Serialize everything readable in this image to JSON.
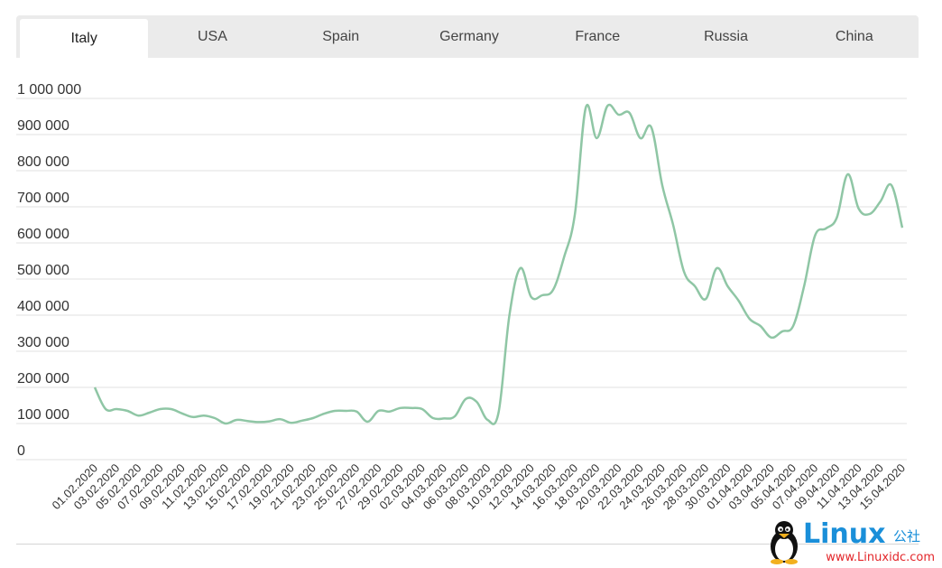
{
  "tabs": [
    {
      "label": "Italy",
      "active": true
    },
    {
      "label": "USA",
      "active": false
    },
    {
      "label": "Spain",
      "active": false
    },
    {
      "label": "Germany",
      "active": false
    },
    {
      "label": "France",
      "active": false
    },
    {
      "label": "Russia",
      "active": false
    },
    {
      "label": "China",
      "active": false
    }
  ],
  "watermark": {
    "brand": "Linux",
    "suffix": "公社",
    "url": "www.Linuxidc.com"
  },
  "chart_data": {
    "type": "line",
    "title": "",
    "xlabel": "",
    "ylabel": "",
    "ylim": [
      0,
      1000000
    ],
    "grid": true,
    "line_color": "#8fc6a5",
    "yticks": [
      {
        "value": 0,
        "label": "0"
      },
      {
        "value": 100000,
        "label": "100 000"
      },
      {
        "value": 200000,
        "label": "200 000"
      },
      {
        "value": 300000,
        "label": "300 000"
      },
      {
        "value": 400000,
        "label": "400 000"
      },
      {
        "value": 500000,
        "label": "500 000"
      },
      {
        "value": 600000,
        "label": "600 000"
      },
      {
        "value": 700000,
        "label": "700 000"
      },
      {
        "value": 800000,
        "label": "800 000"
      },
      {
        "value": 900000,
        "label": "900 000"
      },
      {
        "value": 1000000,
        "label": "1 000 000"
      }
    ],
    "xtick_labels": [
      "01.02.2020",
      "03.02.2020",
      "05.02.2020",
      "07.02.2020",
      "09.02.2020",
      "11.02.2020",
      "13.02.2020",
      "15.02.2020",
      "17.02.2020",
      "19.02.2020",
      "21.02.2020",
      "23.02.2020",
      "25.02.2020",
      "27.02.2020",
      "29.02.2020",
      "02.03.2020",
      "04.03.2020",
      "06.03.2020",
      "08.03.2020",
      "10.03.2020",
      "12.03.2020",
      "14.03.2020",
      "16.03.2020",
      "18.03.2020",
      "20.03.2020",
      "22.03.2020",
      "24.03.2020",
      "26.03.2020",
      "28.03.2020",
      "30.03.2020",
      "01.04.2020",
      "03.04.2020",
      "05.04.2020",
      "07.04.2020",
      "09.04.2020",
      "11.04.2020",
      "13.04.2020",
      "15.04.2020"
    ],
    "series": [
      {
        "x": [
          "01.02.2020",
          "02.02.2020",
          "03.02.2020",
          "04.02.2020",
          "05.02.2020",
          "06.02.2020",
          "07.02.2020",
          "08.02.2020",
          "09.02.2020",
          "10.02.2020",
          "11.02.2020",
          "12.02.2020",
          "13.02.2020",
          "14.02.2020",
          "15.02.2020",
          "16.02.2020",
          "17.02.2020",
          "18.02.2020",
          "19.02.2020",
          "20.02.2020",
          "21.02.2020",
          "22.02.2020",
          "23.02.2020",
          "24.02.2020",
          "25.02.2020",
          "26.02.2020",
          "27.02.2020",
          "28.02.2020",
          "29.02.2020",
          "01.03.2020",
          "02.03.2020",
          "03.03.2020",
          "04.03.2020",
          "05.03.2020",
          "06.03.2020",
          "07.03.2020",
          "08.03.2020",
          "09.03.2020",
          "10.03.2020",
          "11.03.2020",
          "12.03.2020",
          "13.03.2020",
          "14.03.2020",
          "15.03.2020",
          "16.03.2020",
          "17.03.2020",
          "18.03.2020",
          "19.03.2020",
          "20.03.2020",
          "21.03.2020",
          "22.03.2020",
          "23.03.2020",
          "24.03.2020",
          "25.03.2020",
          "26.03.2020",
          "27.03.2020",
          "28.03.2020",
          "29.03.2020",
          "30.03.2020",
          "31.03.2020",
          "01.04.2020",
          "02.04.2020",
          "03.04.2020",
          "04.04.2020",
          "05.04.2020",
          "06.04.2020",
          "07.04.2020",
          "08.04.2020",
          "09.04.2020",
          "10.04.2020",
          "11.04.2020",
          "12.04.2020",
          "13.04.2020",
          "14.04.2020",
          "15.04.2020"
        ],
        "values": [
          200000,
          140000,
          140000,
          135000,
          122000,
          130000,
          140000,
          140000,
          128000,
          118000,
          122000,
          115000,
          100000,
          110000,
          107000,
          104000,
          106000,
          112000,
          102000,
          108000,
          115000,
          127000,
          135000,
          135000,
          133000,
          105000,
          135000,
          133000,
          143000,
          143000,
          140000,
          115000,
          114000,
          120000,
          168000,
          160000,
          110000,
          130000,
          400000,
          530000,
          450000,
          455000,
          470000,
          560000,
          680000,
          975000,
          890000,
          980000,
          955000,
          960000,
          890000,
          920000,
          760000,
          650000,
          520000,
          480000,
          445000,
          530000,
          480000,
          440000,
          390000,
          370000,
          338000,
          355000,
          370000,
          480000,
          620000,
          640000,
          670000,
          790000,
          695000,
          680000,
          715000,
          760000,
          642000
        ]
      }
    ]
  }
}
